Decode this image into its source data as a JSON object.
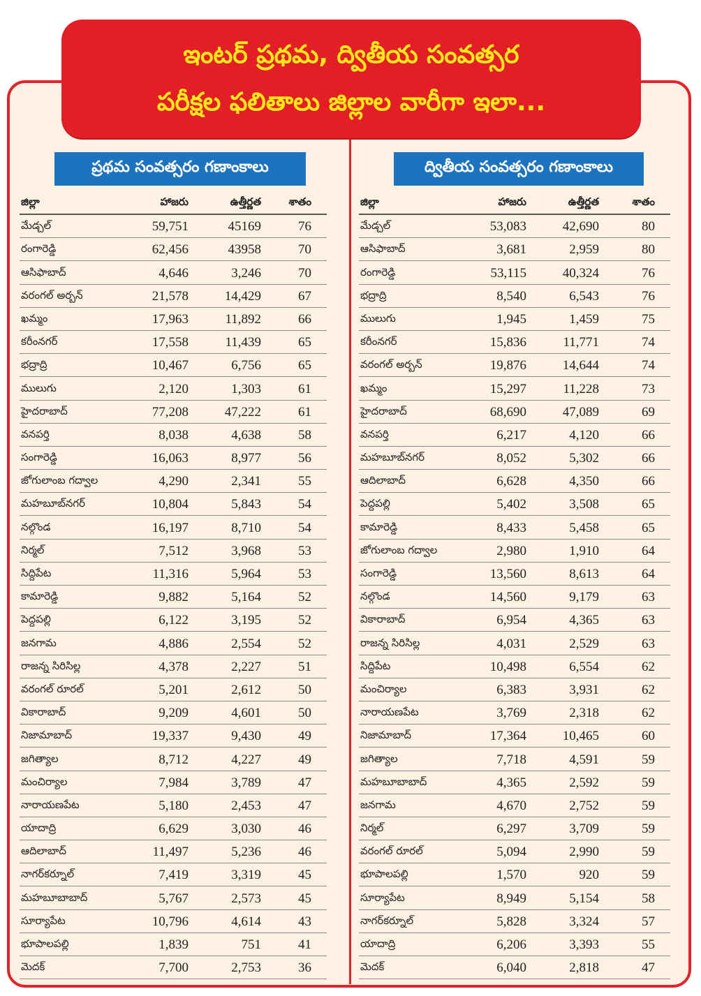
{
  "title": {
    "line1": "ఇంటర్ ప్రథమ, ద్వితీయ సంవత్సర",
    "line2": "పరీక్షల ఫలితాలు జిల్లాల వారీగా ఇలా..."
  },
  "first_year": {
    "heading": "ప్రథమ సంవత్సరం గణాంకాలు",
    "columns": [
      "జిల్లా",
      "హాజరు",
      "ఉత్తీర్ణత",
      "శాతం"
    ],
    "rows": [
      [
        "మేడ్చల్",
        "59,751",
        "45169",
        "76"
      ],
      [
        "రంగారెడ్డి",
        "62,456",
        "43958",
        "70"
      ],
      [
        "ఆసిఫాబాద్",
        "4,646",
        "3,246",
        "70"
      ],
      [
        "వరంగల్ అర్బన్",
        "21,578",
        "14,429",
        "67"
      ],
      [
        "ఖమ్మం",
        "17,963",
        "11,892",
        "66"
      ],
      [
        "కరీంనగర్",
        "17,558",
        "11,439",
        "65"
      ],
      [
        "భద్రాద్రి",
        "10,467",
        "6,756",
        "65"
      ],
      [
        "ములుగు",
        "2,120",
        "1,303",
        "61"
      ],
      [
        "హైదరాబాద్",
        "77,208",
        "47,222",
        "61"
      ],
      [
        "వనపర్తి",
        "8,038",
        "4,638",
        "58"
      ],
      [
        "సంగారెడ్డి",
        "16,063",
        "8,977",
        "56"
      ],
      [
        "జోగులాంబ గద్వాల",
        "4,290",
        "2,341",
        "55"
      ],
      [
        "మహబూబ్‌నగర్",
        "10,804",
        "5,843",
        "54"
      ],
      [
        "నల్గొండ",
        "16,197",
        "8,710",
        "54"
      ],
      [
        "నిర్మల్",
        "7,512",
        "3,968",
        "53"
      ],
      [
        "సిద్దిపేట",
        "11,316",
        "5,964",
        "53"
      ],
      [
        "కామారెడ్డి",
        "9,882",
        "5,164",
        "52"
      ],
      [
        "పెద్దపల్లి",
        "6,122",
        "3,195",
        "52"
      ],
      [
        "జనగామ",
        "4,886",
        "2,554",
        "52"
      ],
      [
        "రాజన్న సిరిసిల్ల",
        "4,378",
        "2,227",
        "51"
      ],
      [
        "వరంగల్ రూరల్",
        "5,201",
        "2,612",
        "50"
      ],
      [
        "వికారాబాద్",
        "9,209",
        "4,601",
        "50"
      ],
      [
        "నిజామాబాద్",
        "19,337",
        "9,430",
        "49"
      ],
      [
        "జగిత్యాల",
        "8,712",
        "4,227",
        "49"
      ],
      [
        "మంచిర్యాల",
        "7,984",
        "3,789",
        "47"
      ],
      [
        "నారాయణపేట",
        "5,180",
        "2,453",
        "47"
      ],
      [
        "యాదాద్రి",
        "6,629",
        "3,030",
        "46"
      ],
      [
        "ఆదిలాబాద్",
        "11,497",
        "5,236",
        "46"
      ],
      [
        "నాగర్‌కర్నూల్",
        "7,419",
        "3,319",
        "45"
      ],
      [
        "మహబూబాబాద్",
        "5,767",
        "2,573",
        "45"
      ],
      [
        "సూర్యాపేట",
        "10,796",
        "4,614",
        "43"
      ],
      [
        "భూపాలపల్లి",
        "1,839",
        "751",
        "41"
      ],
      [
        "మెదక్",
        "7,700",
        "2,753",
        "36"
      ]
    ]
  },
  "second_year": {
    "heading": "ద్వితీయ సంవత్సరం గణాంకాలు",
    "columns": [
      "జిల్లా",
      "హాజరు",
      "ఉత్తీర్ణత",
      "శాతం"
    ],
    "rows": [
      [
        "మేడ్చల్",
        "53,083",
        "42,690",
        "80"
      ],
      [
        "ఆసిఫాబాద్",
        "3,681",
        "2,959",
        "80"
      ],
      [
        "రంగారెడ్డి",
        "53,115",
        "40,324",
        "76"
      ],
      [
        "భద్రాద్రి",
        "8,540",
        "6,543",
        "76"
      ],
      [
        "ములుగు",
        "1,945",
        "1,459",
        "75"
      ],
      [
        "కరీంనగర్",
        "15,836",
        "11,771",
        "74"
      ],
      [
        "వరంగల్ అర్బన్",
        "19,876",
        "14,644",
        "74"
      ],
      [
        "ఖమ్మం",
        "15,297",
        "11,228",
        "73"
      ],
      [
        "హైదరాబాద్",
        "68,690",
        "47,089",
        "69"
      ],
      [
        "వనపర్తి",
        "6,217",
        "4,120",
        "66"
      ],
      [
        "మహబూబ్‌నగర్",
        "8,052",
        "5,302",
        "66"
      ],
      [
        "ఆదిలాబాద్",
        "6,628",
        "4,350",
        "66"
      ],
      [
        "పెద్దపల్లి",
        "5,402",
        "3,508",
        "65"
      ],
      [
        "కామారెడ్డి",
        "8,433",
        "5,458",
        "65"
      ],
      [
        "జోగులాంబ గద్వాల",
        "2,980",
        "1,910",
        "64"
      ],
      [
        "సంగారెడ్డి",
        "13,560",
        "8,613",
        "64"
      ],
      [
        "నల్గొండ",
        "14,560",
        "9,179",
        "63"
      ],
      [
        "వికారాబాద్",
        "6,954",
        "4,365",
        "63"
      ],
      [
        "రాజన్న సిరిసిల్ల",
        "4,031",
        "2,529",
        "63"
      ],
      [
        "సిద్దిపేట",
        "10,498",
        "6,554",
        "62"
      ],
      [
        "మంచిర్యాల",
        "6,383",
        "3,931",
        "62"
      ],
      [
        "నారాయణపేట",
        "3,769",
        "2,318",
        "62"
      ],
      [
        "నిజామాబాద్",
        "17,364",
        "10,465",
        "60"
      ],
      [
        "జగిత్యాల",
        "7,718",
        "4,591",
        "59"
      ],
      [
        "మహబూబాబాద్",
        "4,365",
        "2,592",
        "59"
      ],
      [
        "జనగామ",
        "4,670",
        "2,752",
        "59"
      ],
      [
        "నిర్మల్",
        "6,297",
        "3,709",
        "59"
      ],
      [
        "వరంగల్ రూరల్",
        "5,094",
        "2,990",
        "59"
      ],
      [
        "భూపాలపల్లి",
        "1,570",
        "920",
        "59"
      ],
      [
        "సూర్యాపేట",
        "8,949",
        "5,154",
        "58"
      ],
      [
        "నాగర్‌కర్నూల్",
        "5,828",
        "3,324",
        "57"
      ],
      [
        "యాదాద్రి",
        "6,206",
        "3,393",
        "55"
      ],
      [
        "మెదక్",
        "6,040",
        "2,818",
        "47"
      ]
    ]
  },
  "colors": {
    "banner_bg": "#e41e26",
    "banner_text": "#ffe81a",
    "heading_bg": "#1e73be",
    "panel_bg": "#fdf1e4"
  }
}
